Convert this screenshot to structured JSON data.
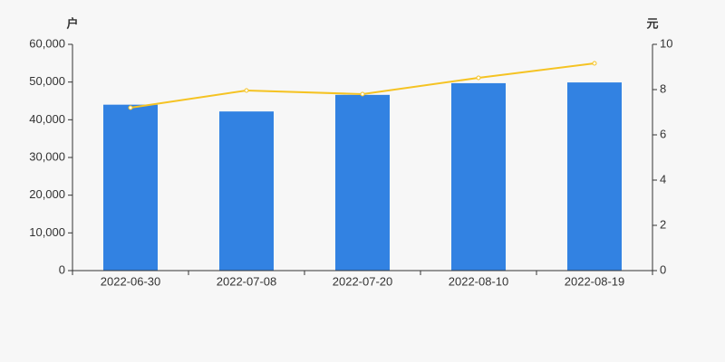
{
  "chart_data": {
    "type": "bar-line",
    "y_label": "户",
    "y2_label": "元",
    "categories": [
      "2022-06-30",
      "2022-07-08",
      "2022-07-20",
      "2022-08-10",
      "2022-08-19"
    ],
    "series": [
      {
        "type": "bar",
        "color": "#3282e2",
        "values": [
          44000,
          42200,
          46600,
          49700,
          49900
        ]
      },
      {
        "type": "line",
        "axis": "y2",
        "color": "#f5c323",
        "values": [
          7.2,
          7.96,
          7.8,
          8.52,
          9.16
        ]
      }
    ],
    "ylim": [
      0,
      60000
    ],
    "yticks": [
      0,
      {
        "value": 10000,
        "label": "10,000"
      },
      {
        "value": 20000,
        "label": "20,000"
      },
      {
        "value": 30000,
        "label": "30,000"
      },
      {
        "value": 40000,
        "label": "40,000"
      },
      {
        "value": 50000,
        "label": "50,000"
      },
      {
        "value": 60000,
        "label": "60,000"
      }
    ],
    "y2lim": [
      0,
      10
    ],
    "y2ticks": [
      0,
      2,
      4,
      6,
      8,
      10
    ]
  }
}
